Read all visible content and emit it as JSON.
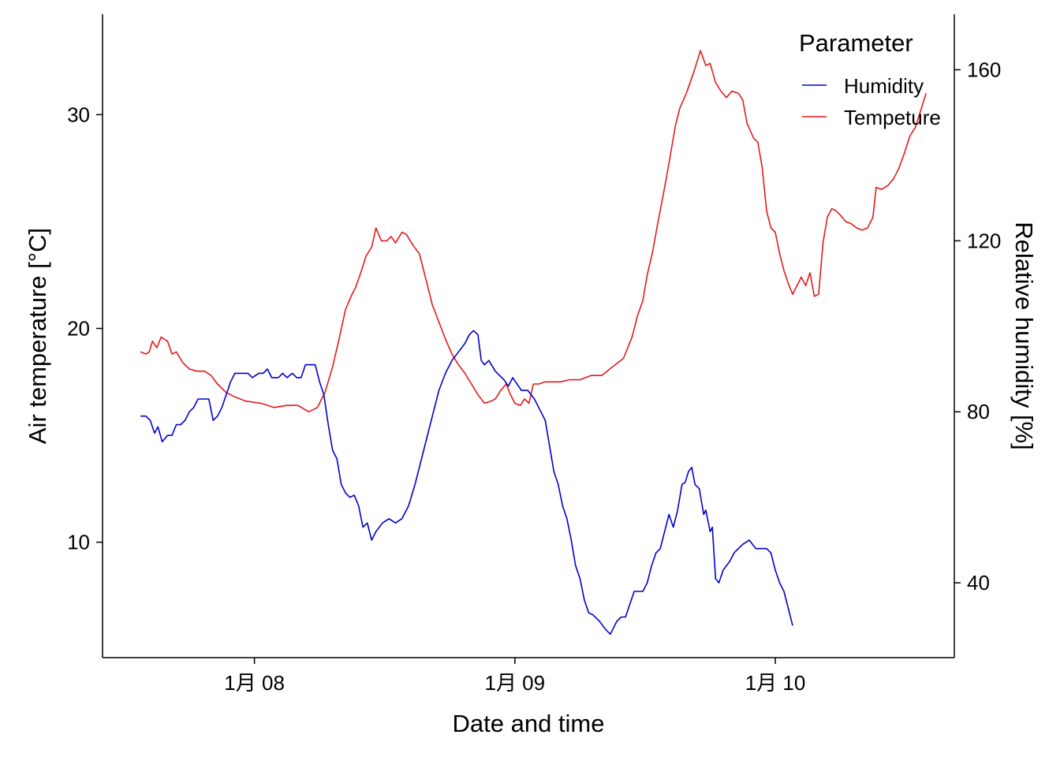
{
  "chart_data": {
    "type": "line",
    "xlabel": "Date and time",
    "ylabel_left": "Air temperature [°C]",
    "ylabel_right": "Relative humidity [%]",
    "x_ticks": [
      {
        "t": 0,
        "label": "1月 08"
      },
      {
        "t": 24,
        "label": "1月 09"
      },
      {
        "t": 48,
        "label": "1月 10"
      }
    ],
    "xlim": [
      -14,
      64.5
    ],
    "ylim_left": [
      4.6,
      34.7
    ],
    "y_ticks_left": [
      10,
      20,
      30
    ],
    "ylim_right": [
      22.5,
      173
    ],
    "y_ticks_right": [
      40,
      80,
      120,
      160
    ],
    "legend": {
      "title": "Parameter",
      "position": "top-right",
      "entries": [
        {
          "label": "Humidity",
          "color": "#0000CD"
        },
        {
          "label": "Tempeture",
          "color": "#E31A1C"
        }
      ]
    },
    "series": [
      {
        "name": "Tempeture",
        "axis": "left",
        "color": "#E31A1C",
        "points": [
          [
            -10.5,
            18.9
          ],
          [
            -10.0,
            18.8
          ],
          [
            -9.7,
            18.9
          ],
          [
            -9.4,
            19.4
          ],
          [
            -9.0,
            19.1
          ],
          [
            -8.6,
            19.6
          ],
          [
            -8.0,
            19.4
          ],
          [
            -7.6,
            18.8
          ],
          [
            -7.2,
            18.9
          ],
          [
            -6.6,
            18.4
          ],
          [
            -6.0,
            18.1
          ],
          [
            -5.3,
            18.0
          ],
          [
            -4.6,
            18.0
          ],
          [
            -4.0,
            17.8
          ],
          [
            -3.4,
            17.4
          ],
          [
            -2.6,
            17.0
          ],
          [
            -1.8,
            16.8
          ],
          [
            -0.8,
            16.6
          ],
          [
            0.6,
            16.5
          ],
          [
            1.8,
            16.3
          ],
          [
            3.0,
            16.4
          ],
          [
            4.0,
            16.4
          ],
          [
            5.0,
            16.1
          ],
          [
            5.8,
            16.3
          ],
          [
            6.5,
            17.0
          ],
          [
            7.2,
            18.2
          ],
          [
            7.8,
            19.5
          ],
          [
            8.4,
            20.9
          ],
          [
            9.0,
            21.6
          ],
          [
            9.3,
            21.9
          ],
          [
            9.8,
            22.6
          ],
          [
            10.3,
            23.4
          ],
          [
            10.8,
            23.8
          ],
          [
            11.2,
            24.7
          ],
          [
            11.7,
            24.1
          ],
          [
            12.2,
            24.1
          ],
          [
            12.6,
            24.3
          ],
          [
            13.0,
            24.0
          ],
          [
            13.6,
            24.5
          ],
          [
            14.0,
            24.4
          ],
          [
            14.6,
            23.9
          ],
          [
            15.2,
            23.5
          ],
          [
            15.8,
            22.3
          ],
          [
            16.4,
            21.1
          ],
          [
            17.0,
            20.3
          ],
          [
            17.6,
            19.5
          ],
          [
            18.2,
            18.8
          ],
          [
            18.8,
            18.3
          ],
          [
            19.4,
            17.9
          ],
          [
            20.0,
            17.4
          ],
          [
            20.6,
            16.9
          ],
          [
            21.2,
            16.5
          ],
          [
            21.8,
            16.6
          ],
          [
            22.2,
            16.7
          ],
          [
            22.7,
            17.1
          ],
          [
            23.2,
            17.4
          ],
          [
            23.6,
            16.9
          ],
          [
            24.0,
            16.5
          ],
          [
            24.5,
            16.4
          ],
          [
            24.9,
            16.7
          ],
          [
            25.3,
            16.5
          ],
          [
            25.7,
            17.4
          ],
          [
            26.2,
            17.4
          ],
          [
            26.8,
            17.5
          ],
          [
            27.5,
            17.5
          ],
          [
            28.2,
            17.5
          ],
          [
            29.0,
            17.6
          ],
          [
            30.0,
            17.6
          ],
          [
            31.0,
            17.8
          ],
          [
            32.0,
            17.8
          ],
          [
            33.0,
            18.2
          ],
          [
            34.0,
            18.6
          ],
          [
            34.8,
            19.6
          ],
          [
            35.3,
            20.6
          ],
          [
            35.8,
            21.3
          ],
          [
            36.2,
            22.5
          ],
          [
            36.7,
            23.6
          ],
          [
            37.2,
            25.0
          ],
          [
            37.8,
            26.6
          ],
          [
            38.3,
            28.0
          ],
          [
            38.8,
            29.5
          ],
          [
            39.2,
            30.3
          ],
          [
            39.8,
            31.0
          ],
          [
            40.5,
            32.0
          ],
          [
            41.1,
            33.0
          ],
          [
            41.6,
            32.3
          ],
          [
            42.0,
            32.4
          ],
          [
            42.5,
            31.5
          ],
          [
            43.0,
            31.1
          ],
          [
            43.5,
            30.8
          ],
          [
            44.0,
            31.1
          ],
          [
            44.6,
            31.0
          ],
          [
            45.0,
            30.7
          ],
          [
            45.4,
            29.6
          ],
          [
            46.0,
            28.9
          ],
          [
            46.4,
            28.7
          ],
          [
            46.8,
            27.5
          ],
          [
            47.2,
            25.5
          ],
          [
            47.6,
            24.7
          ],
          [
            48.0,
            24.5
          ],
          [
            48.4,
            23.5
          ],
          [
            48.8,
            22.7
          ],
          [
            49.2,
            22.1
          ],
          [
            49.6,
            21.6
          ],
          [
            50.0,
            22.0
          ],
          [
            50.4,
            22.4
          ],
          [
            50.8,
            22.0
          ],
          [
            51.2,
            22.6
          ],
          [
            51.6,
            21.5
          ],
          [
            52.0,
            21.6
          ],
          [
            52.4,
            24.0
          ],
          [
            52.8,
            25.2
          ],
          [
            53.2,
            25.6
          ],
          [
            53.6,
            25.5
          ],
          [
            54.0,
            25.3
          ],
          [
            54.5,
            25.0
          ],
          [
            55.0,
            24.9
          ],
          [
            55.5,
            24.7
          ],
          [
            56.0,
            24.6
          ],
          [
            56.5,
            24.7
          ],
          [
            57.0,
            25.2
          ],
          [
            57.3,
            26.6
          ],
          [
            57.8,
            26.5
          ],
          [
            58.4,
            26.7
          ],
          [
            58.9,
            27.0
          ],
          [
            59.4,
            27.5
          ],
          [
            59.9,
            28.2
          ],
          [
            60.4,
            29.0
          ],
          [
            60.9,
            29.4
          ],
          [
            61.4,
            30.2
          ],
          [
            61.9,
            31.0
          ]
        ]
      },
      {
        "name": "Humidity",
        "axis": "right",
        "color": "#0000CD",
        "points": [
          [
            -10.5,
            79
          ],
          [
            -10.0,
            79
          ],
          [
            -9.6,
            78
          ],
          [
            -9.2,
            75
          ],
          [
            -8.9,
            76.5
          ],
          [
            -8.5,
            73
          ],
          [
            -8.0,
            74.5
          ],
          [
            -7.6,
            74.5
          ],
          [
            -7.2,
            77
          ],
          [
            -6.8,
            77
          ],
          [
            -6.4,
            78
          ],
          [
            -6.0,
            80
          ],
          [
            -5.6,
            81
          ],
          [
            -5.2,
            83
          ],
          [
            -4.2,
            83
          ],
          [
            -3.8,
            78
          ],
          [
            -3.4,
            79
          ],
          [
            -3.0,
            81
          ],
          [
            -2.6,
            84
          ],
          [
            -2.2,
            87
          ],
          [
            -1.8,
            89
          ],
          [
            -0.6,
            89
          ],
          [
            -0.2,
            88
          ],
          [
            0.4,
            89
          ],
          [
            0.8,
            89
          ],
          [
            1.2,
            90
          ],
          [
            1.6,
            88
          ],
          [
            2.2,
            88
          ],
          [
            2.6,
            89
          ],
          [
            3.0,
            88
          ],
          [
            3.5,
            89
          ],
          [
            3.9,
            88
          ],
          [
            4.3,
            88
          ],
          [
            4.7,
            91
          ],
          [
            5.6,
            91
          ],
          [
            6.0,
            87
          ],
          [
            6.4,
            84
          ],
          [
            6.8,
            77
          ],
          [
            7.2,
            71
          ],
          [
            7.6,
            69
          ],
          [
            8.0,
            63
          ],
          [
            8.4,
            61
          ],
          [
            8.8,
            60
          ],
          [
            9.2,
            60.5
          ],
          [
            9.6,
            58
          ],
          [
            10.0,
            53
          ],
          [
            10.4,
            54
          ],
          [
            10.8,
            50
          ],
          [
            11.2,
            52
          ],
          [
            11.8,
            54
          ],
          [
            12.4,
            55
          ],
          [
            13.0,
            54
          ],
          [
            13.6,
            55
          ],
          [
            14.2,
            58
          ],
          [
            14.8,
            63
          ],
          [
            15.6,
            71
          ],
          [
            16.4,
            79
          ],
          [
            17.0,
            85
          ],
          [
            17.6,
            89
          ],
          [
            18.2,
            92
          ],
          [
            18.8,
            94
          ],
          [
            19.4,
            96
          ],
          [
            19.8,
            98
          ],
          [
            20.2,
            99
          ],
          [
            20.6,
            98
          ],
          [
            20.9,
            92
          ],
          [
            21.2,
            91
          ],
          [
            21.6,
            92
          ],
          [
            22.2,
            89.5
          ],
          [
            22.6,
            88.5
          ],
          [
            23.0,
            87.5
          ],
          [
            23.4,
            86
          ],
          [
            23.8,
            88
          ],
          [
            24.2,
            86.5
          ],
          [
            24.6,
            85
          ],
          [
            25.2,
            85
          ],
          [
            25.8,
            83
          ],
          [
            26.4,
            80
          ],
          [
            26.8,
            78
          ],
          [
            27.2,
            72
          ],
          [
            27.6,
            66
          ],
          [
            28.0,
            63
          ],
          [
            28.4,
            58
          ],
          [
            28.8,
            55
          ],
          [
            29.2,
            50
          ],
          [
            29.6,
            44
          ],
          [
            30.0,
            41
          ],
          [
            30.4,
            36
          ],
          [
            30.8,
            33
          ],
          [
            31.2,
            32.5
          ],
          [
            31.8,
            31
          ],
          [
            32.4,
            29
          ],
          [
            32.8,
            28
          ],
          [
            33.4,
            31
          ],
          [
            33.8,
            32
          ],
          [
            34.2,
            32
          ],
          [
            34.6,
            35
          ],
          [
            35.0,
            38
          ],
          [
            35.4,
            38
          ],
          [
            35.8,
            38
          ],
          [
            36.2,
            40
          ],
          [
            36.6,
            44
          ],
          [
            37.0,
            47
          ],
          [
            37.4,
            48
          ],
          [
            37.8,
            52
          ],
          [
            38.2,
            56
          ],
          [
            38.6,
            53
          ],
          [
            39.0,
            57
          ],
          [
            39.4,
            63
          ],
          [
            39.7,
            63.5
          ],
          [
            40.0,
            66
          ],
          [
            40.3,
            67
          ],
          [
            40.6,
            63
          ],
          [
            41.0,
            62
          ],
          [
            41.4,
            56
          ],
          [
            41.6,
            57
          ],
          [
            42.0,
            52
          ],
          [
            42.2,
            53
          ],
          [
            42.5,
            41
          ],
          [
            42.8,
            40
          ],
          [
            43.2,
            43
          ],
          [
            43.8,
            45
          ],
          [
            44.2,
            47
          ],
          [
            44.6,
            48
          ],
          [
            45.0,
            49
          ],
          [
            45.6,
            50
          ],
          [
            46.2,
            48
          ],
          [
            46.8,
            48
          ],
          [
            47.2,
            48
          ],
          [
            47.6,
            47
          ],
          [
            48.0,
            43
          ],
          [
            48.4,
            40
          ],
          [
            48.8,
            38
          ],
          [
            49.2,
            34
          ],
          [
            49.6,
            30
          ]
        ]
      }
    ]
  }
}
